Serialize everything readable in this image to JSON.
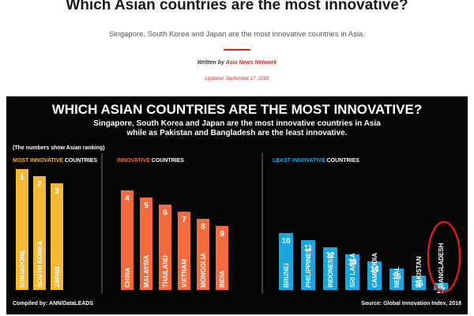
{
  "article": {
    "headline": "Which Asian countries are the most innovative?",
    "subheadline": "Singapore, South Korea and Japan are the most innovative countries in Asia.",
    "written_by_label": "Written by",
    "author": "Asia News Network",
    "updated": "Updated: September 17, 2018"
  },
  "infographic": {
    "title": "WHICH ASIAN COUNTRIES ARE THE MOST INNOVATIVE?",
    "subtitle_line1": "Singapore, South Korea and Japan are the most innovative countries in Asia",
    "subtitle_line2": "while as Pakistan and Bangladesh are the least innovative.",
    "note": "(The numbers show Asian ranking)",
    "credit": "Compiled by: ANN/DataLEADS",
    "source": "Source: Global Innovation Index, 2018",
    "colors": {
      "background": "#050505",
      "most": "#f5b834",
      "innovative": "#f26c3f",
      "least": "#1aa7e0",
      "highlight": "#d91a1a",
      "text": "#ffffff"
    }
  },
  "chart_data": {
    "type": "bar",
    "title": "WHICH ASIAN COUNTRIES ARE THE MOST INNOVATIVE?",
    "value_label": "Asian ranking",
    "groups": [
      {
        "heading_accent": "MOST INNOVATIVE",
        "heading_rest": " COUNTRIES",
        "color": "#f5b834",
        "categories": [
          "SINGAPORE",
          "SOUTH KOREA",
          "JAPAN"
        ],
        "values": [
          1,
          2,
          3
        ]
      },
      {
        "heading_accent": "INNOVATIVE",
        "heading_rest": " COUNTRIES",
        "color": "#f26c3f",
        "categories": [
          "CHINA",
          "MALAYSIA",
          "THAILAND",
          "VIETNAM",
          "MONGOLIA",
          "INDIA"
        ],
        "values": [
          4,
          5,
          6,
          7,
          8,
          9
        ]
      },
      {
        "heading_accent": "LEAST INNOVATIVE",
        "heading_rest": " COUNTRIES",
        "color": "#1aa7e0",
        "categories": [
          "BRUNEI",
          "PHILIPPINES",
          "INDONESIA",
          "SRI LANKA",
          "CAMBODIA",
          "NEPAL",
          "PAKISTAN",
          "BANGLADESH"
        ],
        "values": [
          10,
          11,
          12,
          13,
          14,
          15,
          16,
          17
        ]
      }
    ],
    "highlighted": "BANGLADESH"
  }
}
